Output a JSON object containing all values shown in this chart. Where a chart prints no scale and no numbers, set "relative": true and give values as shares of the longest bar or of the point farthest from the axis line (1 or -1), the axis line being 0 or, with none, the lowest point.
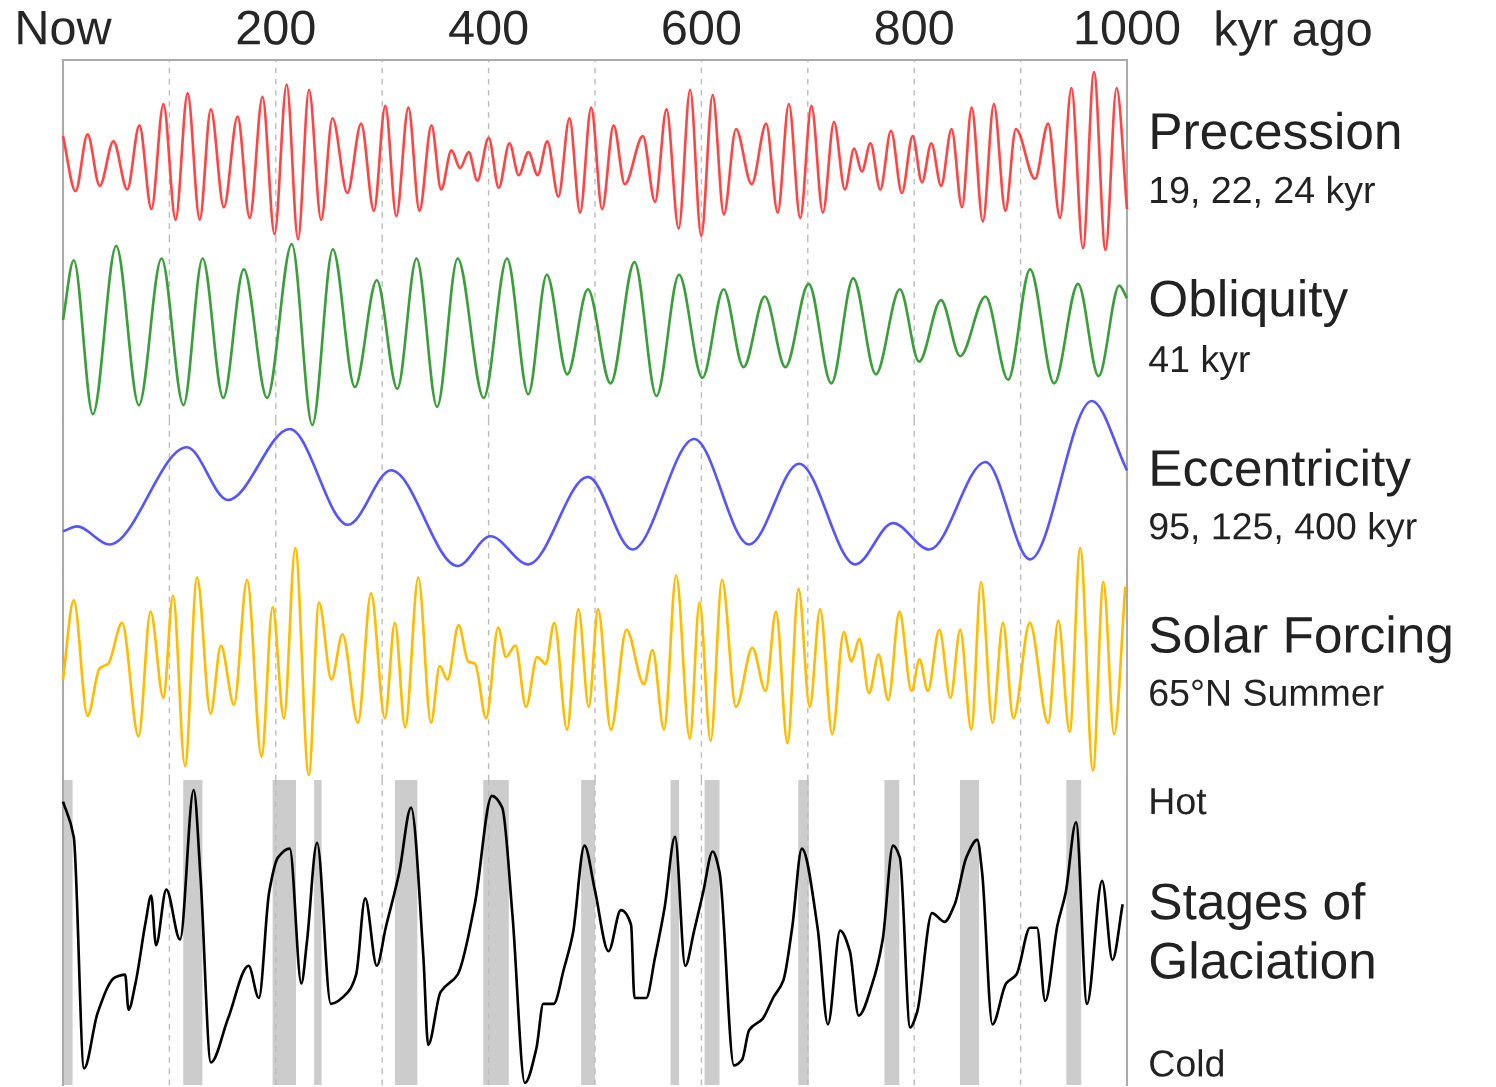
{
  "chart_data": [
    {
      "type": "line",
      "title": "Precession",
      "annotations": [
        "19, 22, 24 kyr"
      ],
      "xlabel": "kyr ago",
      "relative": true,
      "xlim": [
        0,
        1000
      ],
      "xticks": [
        {
          "value": 0,
          "label": "Now"
        },
        {
          "value": 100,
          "label": null
        },
        200,
        {
          "value": 300,
          "label": null
        },
        400,
        {
          "value": 500,
          "label": null
        },
        600,
        {
          "value": 700,
          "label": null
        },
        800,
        {
          "value": 900,
          "label": null
        },
        1000
      ],
      "tick_labels": "x",
      "grid": "x",
      "series": [
        {
          "color": "#ff4444",
          "x": [
            0,
            11.8,
            23.1,
            34.5,
            47.4,
            60.4,
            71.8,
            83.1,
            94.4,
            105.8,
            117.1,
            128.5,
            138.9,
            151.2,
            164.1,
            175.5,
            187.5,
            198.8,
            210.2,
            220.9,
            231.2,
            242.6,
            253.3,
            267.2,
            280.2,
            292.2,
            302.9,
            313.3,
            324.6,
            335.0,
            346.3,
            355.4,
            365.1,
            373.2,
            381.3,
            389.4,
            400.1,
            409.5,
            419.6,
            428.3,
            437.4,
            446.1,
            455.2,
            465.6,
            476.0,
            486.0,
            496.4,
            506.7,
            517.5,
            528.0,
            545.0,
            556.4,
            567.2,
            578.6,
            589.4,
            599.8,
            610.6,
            621.1,
            632.5,
            647.2,
            660.9,
            671.7,
            682.2,
            692.9,
            703.4,
            714.2,
            724.6,
            734.8,
            743.6,
            750.8,
            758.9,
            768.1,
            778.2,
            788.4,
            798.5,
            807.3,
            816.1,
            825.3,
            835.1,
            844.9,
            854.0,
            864.5,
            874.9,
            885.7,
            895.5,
            913.5,
            925.9,
            937.0,
            947.8,
            958.6,
            969.0,
            979.8,
            990.2,
            1000
          ],
          "values": [
            0.64,
            0.33,
            0.65,
            0.36,
            0.61,
            0.34,
            0.7,
            0.23,
            0.82,
            0.17,
            0.88,
            0.17,
            0.79,
            0.24,
            0.75,
            0.18,
            0.86,
            0.09,
            0.93,
            0.06,
            0.9,
            0.17,
            0.74,
            0.32,
            0.71,
            0.22,
            0.81,
            0.19,
            0.8,
            0.22,
            0.7,
            0.34,
            0.56,
            0.46,
            0.55,
            0.39,
            0.63,
            0.35,
            0.6,
            0.42,
            0.55,
            0.42,
            0.61,
            0.3,
            0.74,
            0.21,
            0.8,
            0.23,
            0.7,
            0.37,
            0.64,
            0.27,
            0.79,
            0.12,
            0.9,
            0.08,
            0.87,
            0.2,
            0.68,
            0.37,
            0.71,
            0.21,
            0.82,
            0.18,
            0.81,
            0.21,
            0.72,
            0.34,
            0.57,
            0.44,
            0.6,
            0.34,
            0.67,
            0.32,
            0.64,
            0.38,
            0.6,
            0.36,
            0.68,
            0.24,
            0.8,
            0.16,
            0.82,
            0.22,
            0.68,
            0.4,
            0.71,
            0.18,
            0.91,
            0.01,
            1.0,
            0.0,
            0.91,
            0.23
          ]
        }
      ]
    },
    {
      "type": "line",
      "title": "Obliquity",
      "annotations": [
        "41 kyr"
      ],
      "relative": true,
      "xlim": [
        0,
        1000
      ],
      "xticks": [
        0,
        100,
        200,
        300,
        400,
        500,
        600,
        700,
        800,
        900,
        1000
      ],
      "tick_labels": false,
      "grid": "x",
      "series": [
        {
          "color": "#3a9e3a",
          "x": [
            0,
            10.1,
            28.1,
            50.0,
            71.3,
            92.6,
            113.2,
            131.2,
            150.6,
            169.9,
            191.8,
            215.0,
            234.3,
            253.6,
            274.3,
            294.9,
            314.2,
            332.3,
            351.6,
            370.9,
            395.4,
            417.3,
            437.3,
            454.7,
            474.0,
            493.3,
            514.6,
            537.1,
            557.8,
            579.0,
            600.9,
            620.9,
            639.6,
            659.6,
            678.9,
            700.8,
            722.1,
            742.7,
            764.0,
            786.5,
            804.6,
            825.2,
            843.2,
            867.0,
            888.3,
            908.9,
            931.5,
            954.0,
            973.3,
            992.7,
            1000
          ],
          "values": [
            0.58,
            0.91,
            0.06,
            0.99,
            0.11,
            0.92,
            0.11,
            0.92,
            0.15,
            0.86,
            0.15,
            1.0,
            0.0,
            0.97,
            0.21,
            0.8,
            0.2,
            0.92,
            0.1,
            0.92,
            0.15,
            0.92,
            0.17,
            0.83,
            0.28,
            0.75,
            0.23,
            0.9,
            0.16,
            0.83,
            0.26,
            0.75,
            0.32,
            0.71,
            0.32,
            0.78,
            0.23,
            0.81,
            0.28,
            0.75,
            0.35,
            0.69,
            0.38,
            0.71,
            0.25,
            0.86,
            0.23,
            0.78,
            0.27,
            0.77,
            0.7
          ]
        }
      ]
    },
    {
      "type": "line",
      "title": "Eccentricity",
      "annotations": [
        "95, 125, 400 kyr"
      ],
      "relative": true,
      "xlim": [
        0,
        1000
      ],
      "xticks": [
        0,
        100,
        200,
        300,
        400,
        500,
        600,
        700,
        800,
        900,
        1000
      ],
      "tick_labels": false,
      "grid": "x",
      "series": [
        {
          "color": "#5555ff",
          "x": [
            0,
            13.3,
            43.6,
            116.4,
            155.1,
            213.1,
            267.8,
            308.4,
            370.9,
            401.8,
            437.3,
            493.3,
            535.2,
            593.2,
            644.8,
            691.8,
            744.6,
            780.1,
            814.2,
            867.0,
            908.9,
            966.9,
            1000
          ],
          "values": [
            0.21,
            0.24,
            0.13,
            0.72,
            0.4,
            0.83,
            0.25,
            0.58,
            0.0,
            0.18,
            0.01,
            0.54,
            0.1,
            0.77,
            0.13,
            0.62,
            0.01,
            0.26,
            0.1,
            0.63,
            0.04,
            1.0,
            0.58
          ]
        }
      ]
    },
    {
      "type": "line",
      "title": "Solar Forcing",
      "annotations": [
        "65°N Summer"
      ],
      "relative": true,
      "xlim": [
        0,
        1000
      ],
      "xticks": [
        0,
        100,
        200,
        300,
        400,
        500,
        600,
        700,
        800,
        900,
        1000
      ],
      "tick_labels": false,
      "grid": "x",
      "series": [
        {
          "color": "#ffbb00",
          "x": [
            0,
            10.1,
            23.1,
            34.4,
            42.5,
            55.5,
            71.0,
            82.3,
            94.3,
            103.4,
            114.7,
            126.0,
            138.7,
            148.4,
            160.7,
            173.0,
            186.6,
            197.0,
            207.6,
            218.3,
            231.0,
            240.6,
            252.3,
            262.7,
            277.2,
            289.5,
            302.5,
            311.9,
            321.6,
            333.9,
            345.9,
            354.0,
            361.4,
            371.8,
            380.8,
            387.3,
            397.7,
            409.0,
            416.4,
            425.2,
            435.2,
            445.6,
            453.6,
            461.8,
            473.7,
            484.4,
            494.1,
            502.9,
            514.9,
            529.6,
            545.9,
            554.1,
            564.9,
            576.3,
            589.1,
            598.2,
            608.7,
            619.4,
            632.5,
            647.9,
            660.3,
            670.1,
            680.9,
            691.3,
            701.8,
            711.6,
            723.0,
            733.8,
            741.0,
            748.5,
            757.6,
            766.5,
            775.6,
            786.1,
            797.5,
            805.0,
            812.8,
            823.6,
            834.1,
            843.2,
            853.7,
            862.8,
            873.6,
            883.4,
            893.2,
            908.6,
            925.9,
            935.4,
            946.1,
            956.0,
            968.0,
            977.8,
            987.9,
            998.4
          ],
          "values": [
            0.42,
            0.77,
            0.26,
            0.47,
            0.49,
            0.67,
            0.17,
            0.72,
            0.34,
            0.79,
            0.04,
            0.87,
            0.27,
            0.57,
            0.31,
            0.86,
            0.08,
            0.74,
            0.25,
            1.0,
            0.0,
            0.76,
            0.42,
            0.62,
            0.23,
            0.8,
            0.25,
            0.67,
            0.21,
            0.87,
            0.23,
            0.48,
            0.42,
            0.66,
            0.5,
            0.49,
            0.25,
            0.65,
            0.52,
            0.57,
            0.3,
            0.52,
            0.49,
            0.67,
            0.2,
            0.73,
            0.3,
            0.73,
            0.2,
            0.64,
            0.4,
            0.55,
            0.2,
            0.88,
            0.16,
            0.76,
            0.15,
            0.86,
            0.3,
            0.56,
            0.37,
            0.72,
            0.14,
            0.82,
            0.3,
            0.73,
            0.18,
            0.63,
            0.5,
            0.6,
            0.36,
            0.53,
            0.33,
            0.72,
            0.37,
            0.51,
            0.37,
            0.64,
            0.34,
            0.64,
            0.2,
            0.85,
            0.23,
            0.67,
            0.25,
            0.67,
            0.23,
            0.68,
            0.19,
            1.0,
            0.02,
            0.85,
            0.18,
            0.83
          ]
        }
      ]
    },
    {
      "type": "line",
      "title": "Stages of\nGlaciation",
      "relative": true,
      "xlim": [
        0,
        1000
      ],
      "xticks": [
        0,
        100,
        200,
        300,
        400,
        500,
        600,
        700,
        800,
        900,
        1000
      ],
      "tick_labels": false,
      "grid": "x",
      "annotations": [
        "Hot",
        "Cold"
      ],
      "bands": [
        {
          "axis": "x",
          "from": 0,
          "to": 9,
          "color": "#cccccc"
        },
        {
          "axis": "x",
          "from": 113,
          "to": 131,
          "color": "#cccccc"
        },
        {
          "axis": "x",
          "from": 197,
          "to": 219,
          "color": "#cccccc"
        },
        {
          "axis": "x",
          "from": 236,
          "to": 243,
          "color": "#cccccc"
        },
        {
          "axis": "x",
          "from": 312,
          "to": 333,
          "color": "#cccccc"
        },
        {
          "axis": "x",
          "from": 395,
          "to": 419,
          "color": "#cccccc"
        },
        {
          "axis": "x",
          "from": 487,
          "to": 500,
          "color": "#cccccc"
        },
        {
          "axis": "x",
          "from": 571,
          "to": 579,
          "color": "#cccccc"
        },
        {
          "axis": "x",
          "from": 603,
          "to": 617,
          "color": "#cccccc"
        },
        {
          "axis": "x",
          "from": 691,
          "to": 701,
          "color": "#cccccc"
        },
        {
          "axis": "x",
          "from": 772,
          "to": 786,
          "color": "#cccccc"
        },
        {
          "axis": "x",
          "from": 843,
          "to": 861,
          "color": "#cccccc"
        },
        {
          "axis": "x",
          "from": 943,
          "to": 957,
          "color": "#cccccc"
        }
      ],
      "series": [
        {
          "color": "#000000",
          "x": [
            0,
            10.1,
            19.8,
            32.6,
            48.7,
            58.4,
            61.6,
            68.1,
            77.7,
            82.9,
            87.4,
            97.1,
            110.0,
            122.8,
            129.3,
            139.0,
            155.1,
            174.4,
            184.1,
            193.7,
            202.1,
            213.1,
            224.0,
            229.2,
            238.8,
            251.7,
            267.8,
            275.5,
            284.0,
            294.9,
            303.3,
            316.1,
            327.1,
            338.7,
            343.2,
            354.8,
            370.9,
            387.0,
            403.1,
            412.8,
            422.5,
            434.1,
            445.0,
            451.4,
            461.1,
            470.8,
            479.2,
            490.1,
            499.8,
            512.7,
            524.3,
            533.9,
            537.1,
            548.1,
            556.5,
            565.5,
            575.2,
            584.8,
            593.2,
            601.6,
            610.6,
            617.0,
            630.6,
            638.3,
            644.8,
            657.7,
            667.3,
            677.0,
            685.3,
            694.4,
            709.2,
            718.9,
            730.4,
            739.5,
            747.8,
            760.7,
            770.4,
            780.1,
            786.5,
            796.2,
            802.6,
            816.8,
            828.4,
            838.1,
            849.0,
            859.3,
            863.8,
            873.5,
            886.4,
            896.0,
            908.9,
            915.4,
            923.1,
            934.7,
            942.4,
            952.1,
            962.4,
            976.6,
            986.3,
            995.9
          ],
          "values": [
            0.96,
            0.84,
            0.05,
            0.24,
            0.36,
            0.37,
            0.25,
            0.34,
            0.55,
            0.64,
            0.47,
            0.66,
            0.49,
            1.0,
            0.7,
            0.07,
            0.22,
            0.4,
            0.29,
            0.65,
            0.77,
            0.8,
            0.34,
            0.48,
            0.82,
            0.27,
            0.31,
            0.37,
            0.63,
            0.4,
            0.53,
            0.72,
            0.94,
            0.43,
            0.13,
            0.31,
            0.37,
            0.61,
            0.98,
            0.94,
            0.57,
            0.0,
            0.12,
            0.27,
            0.27,
            0.39,
            0.51,
            0.81,
            0.66,
            0.45,
            0.59,
            0.54,
            0.29,
            0.29,
            0.43,
            0.6,
            0.84,
            0.4,
            0.52,
            0.65,
            0.79,
            0.72,
            0.06,
            0.08,
            0.18,
            0.22,
            0.29,
            0.35,
            0.53,
            0.8,
            0.53,
            0.2,
            0.52,
            0.45,
            0.23,
            0.34,
            0.49,
            0.81,
            0.77,
            0.19,
            0.24,
            0.58,
            0.55,
            0.61,
            0.77,
            0.83,
            0.72,
            0.2,
            0.34,
            0.37,
            0.53,
            0.53,
            0.28,
            0.54,
            0.65,
            0.89,
            0.27,
            0.69,
            0.42,
            0.61
          ]
        }
      ]
    }
  ]
}
